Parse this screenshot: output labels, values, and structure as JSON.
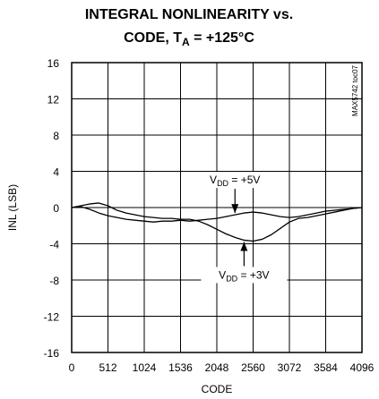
{
  "chart_data": {
    "type": "line",
    "title_line1": "INTEGRAL NONLINEARITY vs.",
    "title_line2_prefix": "CODE, T",
    "title_line2_sub": "A",
    "title_line2_suffix": " = +125°C",
    "xlabel": "CODE",
    "ylabel": "INL (LSB)",
    "xlim": [
      0,
      4096
    ],
    "ylim": [
      -16,
      16
    ],
    "x_ticks": [
      "0",
      "512",
      "1024",
      "1536",
      "2048",
      "2560",
      "3072",
      "3584",
      "4096"
    ],
    "y_ticks": [
      "16",
      "12",
      "8",
      "4",
      "0",
      "-4",
      "-8",
      "-12",
      "-16"
    ],
    "grid": true,
    "watermark": "MAX5742 toc07",
    "annotations": [
      {
        "prefix": "V",
        "sub": "DD",
        "suffix": " = +5V",
        "target_series": 0
      },
      {
        "prefix": "V",
        "sub": "DD",
        "suffix": " = +3V",
        "target_series": 1
      }
    ],
    "series": [
      {
        "name": "VDD = +5V",
        "x": [
          0,
          128,
          256,
          384,
          512,
          640,
          768,
          896,
          1024,
          1152,
          1280,
          1408,
          1536,
          1664,
          1792,
          1920,
          2048,
          2176,
          2304,
          2432,
          2560,
          2688,
          2816,
          2944,
          3072,
          3200,
          3328,
          3456,
          3584,
          3712,
          3840,
          3968,
          4096
        ],
        "y": [
          0,
          0.1,
          -0.2,
          -0.6,
          -0.9,
          -1.1,
          -1.3,
          -1.4,
          -1.5,
          -1.6,
          -1.5,
          -1.5,
          -1.4,
          -1.5,
          -1.4,
          -1.3,
          -1.2,
          -1.0,
          -0.8,
          -0.6,
          -0.5,
          -0.6,
          -0.8,
          -1.0,
          -1.1,
          -1.0,
          -0.8,
          -0.6,
          -0.4,
          -0.3,
          -0.2,
          -0.1,
          0
        ]
      },
      {
        "name": "VDD = +3V",
        "x": [
          0,
          128,
          256,
          384,
          512,
          640,
          768,
          896,
          1024,
          1152,
          1280,
          1408,
          1536,
          1664,
          1792,
          1920,
          2048,
          2176,
          2304,
          2432,
          2560,
          2688,
          2816,
          2944,
          3072,
          3200,
          3328,
          3456,
          3584,
          3712,
          3840,
          3968,
          4096
        ],
        "y": [
          0,
          0.2,
          0.4,
          0.5,
          0.2,
          -0.3,
          -0.6,
          -0.8,
          -1.0,
          -1.1,
          -1.2,
          -1.2,
          -1.3,
          -1.3,
          -1.5,
          -1.9,
          -2.4,
          -2.9,
          -3.3,
          -3.6,
          -3.7,
          -3.5,
          -3.0,
          -2.3,
          -1.6,
          -1.2,
          -1.1,
          -0.9,
          -0.7,
          -0.5,
          -0.3,
          -0.1,
          0
        ]
      }
    ]
  }
}
